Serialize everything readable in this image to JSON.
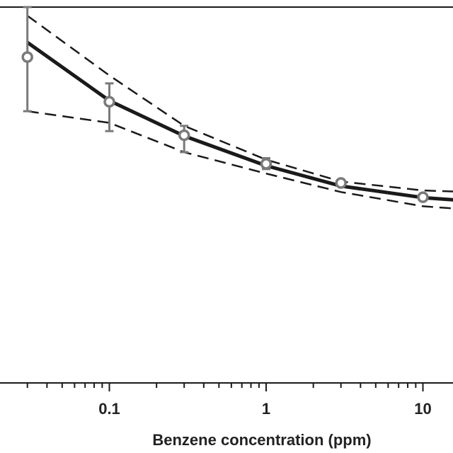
{
  "chart_data": {
    "type": "line",
    "title": "",
    "xlabel": "Benzene concentration (ppm)",
    "ylabel": "",
    "x_scale": "log",
    "xlim": [
      0.02,
      20
    ],
    "ylim": [
      0,
      1
    ],
    "x_ticks": [
      {
        "value": 0.1,
        "label": "0.1"
      },
      {
        "value": 1,
        "label": "1"
      },
      {
        "value": 10,
        "label": "10"
      }
    ],
    "grid": false,
    "legend": "none",
    "colors": {
      "fit_line": "#1a1a1a",
      "band": "#1a1a1a",
      "points": "#7a7a7a",
      "axes": "#1a1a1a"
    },
    "series": [
      {
        "style": "solid",
        "x": [
          0.03,
          0.1,
          0.3,
          1,
          3,
          10,
          20
        ],
        "y": [
          0.906,
          0.751,
          0.657,
          0.578,
          0.524,
          0.493,
          0.484
        ]
      },
      {
        "style": "dashed",
        "x": [
          0.03,
          0.1,
          0.3,
          1,
          3,
          10,
          20
        ],
        "y": [
          0.977,
          0.818,
          0.684,
          0.594,
          0.536,
          0.512,
          0.508
        ]
      },
      {
        "style": "dashed",
        "x": [
          0.03,
          0.1,
          0.3,
          1,
          3,
          10,
          20
        ],
        "y": [
          0.723,
          0.692,
          0.614,
          0.557,
          0.508,
          0.47,
          0.461
        ]
      }
    ],
    "points": {
      "x": [
        0.03,
        0.1,
        0.3,
        1,
        3,
        10
      ],
      "y": [
        0.867,
        0.748,
        0.659,
        0.583,
        0.532,
        0.494
      ],
      "err_low": [
        0.723,
        0.67,
        0.614,
        0.569,
        0.526,
        0.49
      ],
      "err_high": [
        1.0,
        0.797,
        0.684,
        0.598,
        0.539,
        0.499
      ]
    }
  }
}
